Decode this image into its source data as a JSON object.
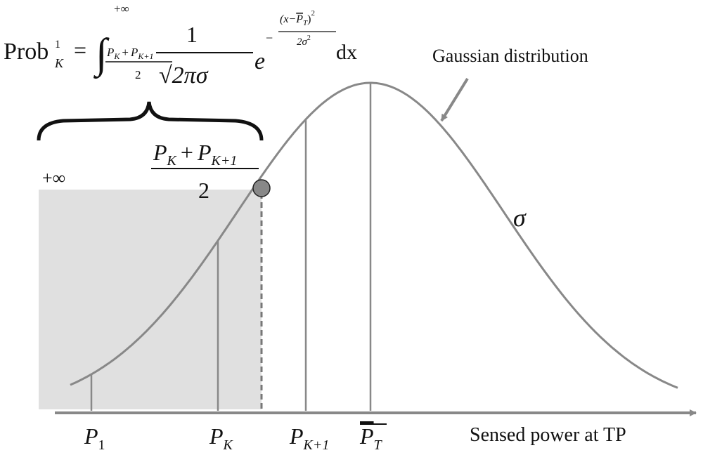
{
  "formula": {
    "prob": "Prob",
    "prob_sup": "1",
    "prob_sub": "K",
    "equals": "=",
    "integral": "∫",
    "upper": "+∞",
    "lower_p1": "P",
    "lower_p1_sub": "K",
    "lower_plus": "+",
    "lower_p2": "P",
    "lower_p2_sub": "K+1",
    "lower_den": "2",
    "coef_num": "1",
    "coef_den": "√2πσ",
    "e": "e",
    "exp_sign": "−",
    "exp_open": "(x−",
    "exp_p": "P",
    "exp_p_sub": "T",
    "exp_close": ")",
    "exp_sup": "2",
    "exp_den": "2σ",
    "exp_den_sup": "2",
    "dx": "dx"
  },
  "curve_label": "Gaussian distribution",
  "sigma_label": "σ",
  "shade_label": "+∞",
  "threshold": {
    "p1": "P",
    "p1_sub": "K",
    "plus": "+",
    "p2": "P",
    "p2_sub": "K+1",
    "den": "2"
  },
  "axis": {
    "title": "Sensed power at TP",
    "ticks": [
      {
        "p": "P",
        "sub": "1"
      },
      {
        "p": "P",
        "sub": "K"
      },
      {
        "p": "P",
        "sub": "K+1"
      },
      {
        "p": "P",
        "sub": "T"
      }
    ]
  }
}
